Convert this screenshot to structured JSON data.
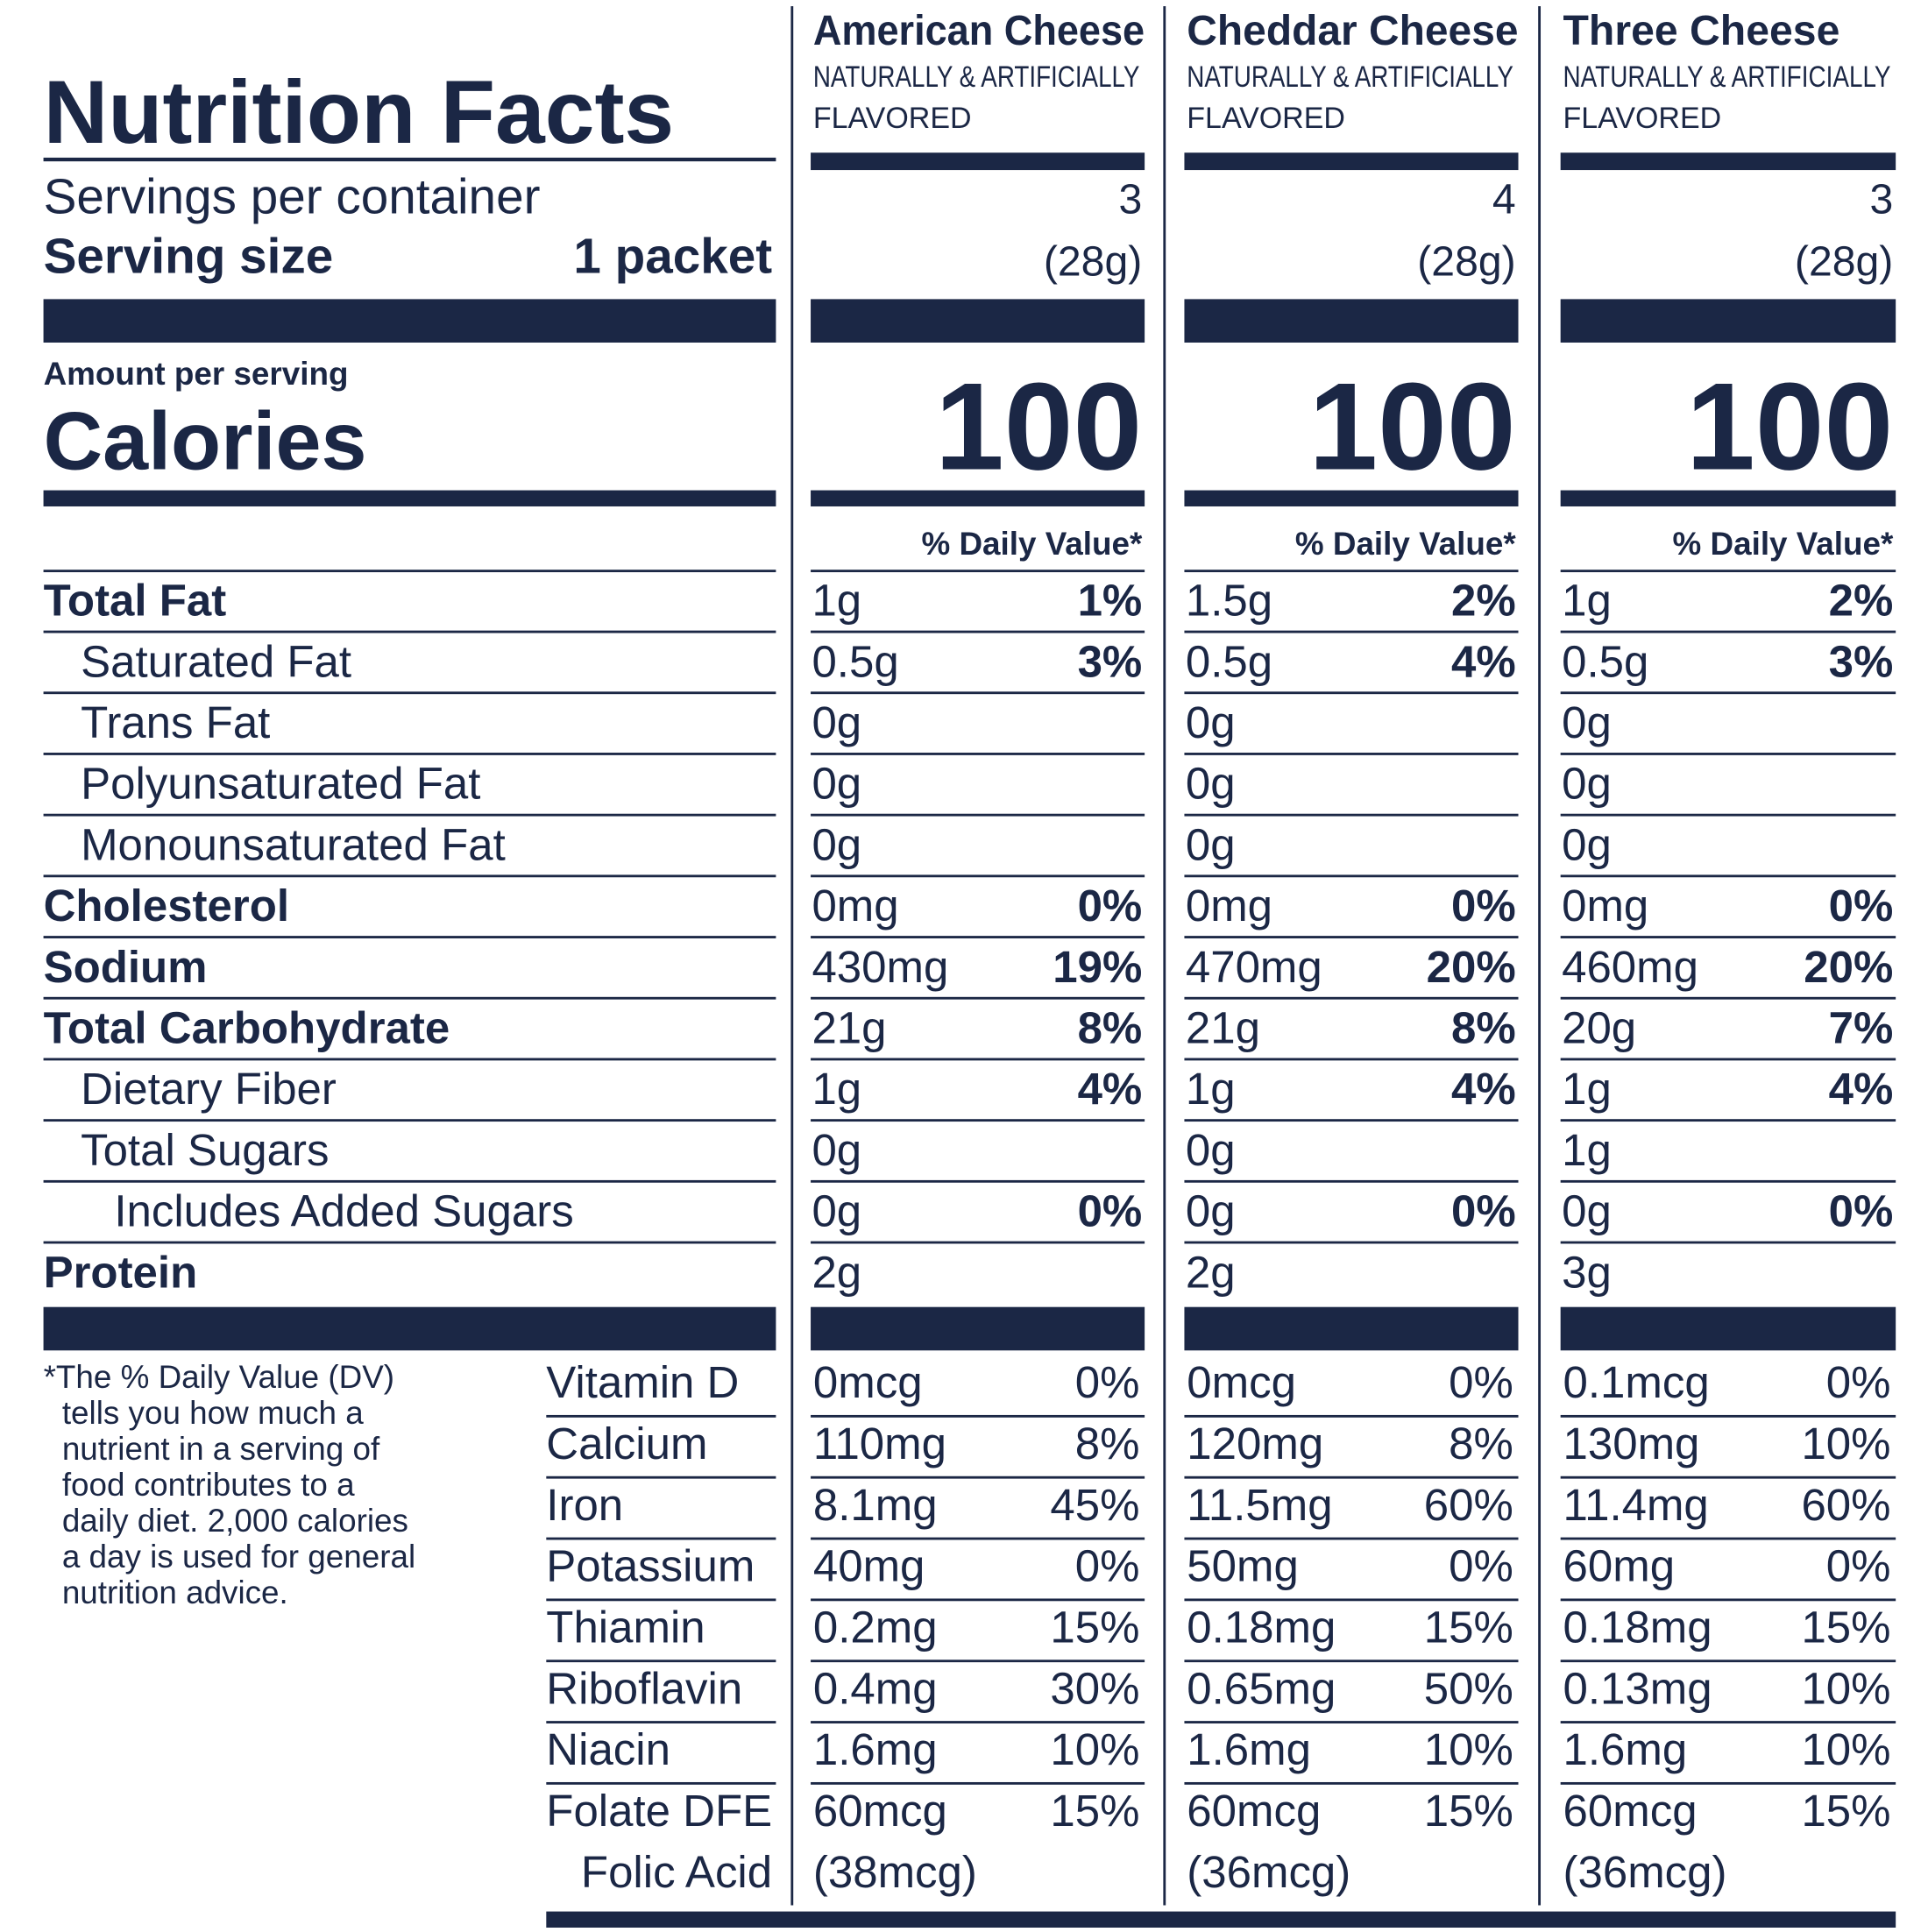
{
  "title": "Nutrition Facts",
  "servings_label": "Servings per container",
  "serving_size_label": "Serving size",
  "serving_size_value": "1 packet",
  "amount_per_serving": "Amount per serving",
  "calories_label": "Calories",
  "nutrients": [
    {
      "label": "Total Fat",
      "bold": true,
      "indent": 0
    },
    {
      "label": "Saturated Fat",
      "bold": false,
      "indent": 1
    },
    {
      "label": "Trans Fat",
      "bold": false,
      "indent": 1
    },
    {
      "label": "Polyunsaturated Fat",
      "bold": false,
      "indent": 1
    },
    {
      "label": "Monounsaturated Fat",
      "bold": false,
      "indent": 1
    },
    {
      "label": "Cholesterol",
      "bold": true,
      "indent": 0
    },
    {
      "label": "Sodium",
      "bold": true,
      "indent": 0
    },
    {
      "label": "Total Carbohydrate",
      "bold": true,
      "indent": 0
    },
    {
      "label": "Dietary Fiber",
      "bold": false,
      "indent": 1
    },
    {
      "label": "Total Sugars",
      "bold": false,
      "indent": 1
    },
    {
      "label": "Includes Added Sugars",
      "bold": false,
      "indent": 2
    },
    {
      "label": "Protein",
      "bold": true,
      "indent": 0
    }
  ],
  "vitamins": [
    "Vitamin D",
    "Calcium",
    "Iron",
    "Potassium",
    "Thiamin",
    "Riboflavin",
    "Niacin",
    "Folate DFE"
  ],
  "folic_acid_label": "Folic Acid",
  "footnote": [
    "*The % Daily Value (DV)",
    "tells you how much a",
    "nutrient in a serving of",
    "food contributes to a",
    "daily diet. 2,000 calories",
    "a day is used for general",
    "nutrition advice."
  ],
  "columns": [
    {
      "name": "American Cheese",
      "flavor": [
        "NATURALLY & ARTIFICIALLY",
        "FLAVORED"
      ],
      "servings": "3",
      "serving_size": "(28g)",
      "calories": "100",
      "dv_header": "% Daily Value*",
      "nutrients": [
        [
          "1g",
          "1%"
        ],
        [
          "0.5g",
          "3%"
        ],
        [
          "0g",
          null
        ],
        [
          "0g",
          null
        ],
        [
          "0g",
          null
        ],
        [
          "0mg",
          "0%"
        ],
        [
          "430mg",
          "19%"
        ],
        [
          "21g",
          "8%"
        ],
        [
          "1g",
          "4%"
        ],
        [
          "0g",
          null
        ],
        [
          "0g",
          "0%"
        ],
        [
          "2g",
          null
        ]
      ],
      "vitamins": [
        [
          "0mcg",
          "0%"
        ],
        [
          "110mg",
          "8%"
        ],
        [
          "8.1mg",
          "45%"
        ],
        [
          "40mg",
          "0%"
        ],
        [
          "0.2mg",
          "15%"
        ],
        [
          "0.4mg",
          "30%"
        ],
        [
          "1.6mg",
          "10%"
        ],
        [
          "60mcg",
          "15%"
        ]
      ],
      "folic_acid": "(38mcg)"
    },
    {
      "name": "Cheddar Cheese",
      "flavor": [
        "NATURALLY & ARTIFICIALLY",
        "FLAVORED"
      ],
      "servings": "4",
      "serving_size": "(28g)",
      "calories": "100",
      "dv_header": "% Daily Value*",
      "nutrients": [
        [
          "1.5g",
          "2%"
        ],
        [
          "0.5g",
          "4%"
        ],
        [
          "0g",
          null
        ],
        [
          "0g",
          null
        ],
        [
          "0g",
          null
        ],
        [
          "0mg",
          "0%"
        ],
        [
          "470mg",
          "20%"
        ],
        [
          "21g",
          "8%"
        ],
        [
          "1g",
          "4%"
        ],
        [
          "0g",
          null
        ],
        [
          "0g",
          "0%"
        ],
        [
          "2g",
          null
        ]
      ],
      "vitamins": [
        [
          "0mcg",
          "0%"
        ],
        [
          "120mg",
          "8%"
        ],
        [
          "11.5mg",
          "60%"
        ],
        [
          "50mg",
          "0%"
        ],
        [
          "0.18mg",
          "15%"
        ],
        [
          "0.65mg",
          "50%"
        ],
        [
          "1.6mg",
          "10%"
        ],
        [
          "60mcg",
          "15%"
        ]
      ],
      "folic_acid": "(36mcg)"
    },
    {
      "name": "Three Cheese",
      "flavor": [
        "NATURALLY & ARTIFICIALLY",
        "FLAVORED"
      ],
      "servings": "3",
      "serving_size": "(28g)",
      "calories": "100",
      "dv_header": "% Daily Value*",
      "nutrients": [
        [
          "1g",
          "2%"
        ],
        [
          "0.5g",
          "3%"
        ],
        [
          "0g",
          null
        ],
        [
          "0g",
          null
        ],
        [
          "0g",
          null
        ],
        [
          "0mg",
          "0%"
        ],
        [
          "460mg",
          "20%"
        ],
        [
          "20g",
          "7%"
        ],
        [
          "1g",
          "4%"
        ],
        [
          "1g",
          null
        ],
        [
          "0g",
          "0%"
        ],
        [
          "3g",
          null
        ]
      ],
      "vitamins": [
        [
          "0.1mcg",
          "0%"
        ],
        [
          "130mg",
          "10%"
        ],
        [
          "11.4mg",
          "60%"
        ],
        [
          "60mg",
          "0%"
        ],
        [
          "0.18mg",
          "15%"
        ],
        [
          "0.13mg",
          "10%"
        ],
        [
          "1.6mg",
          "10%"
        ],
        [
          "60mcg",
          "15%"
        ]
      ],
      "folic_acid": "(36mcg)"
    }
  ]
}
